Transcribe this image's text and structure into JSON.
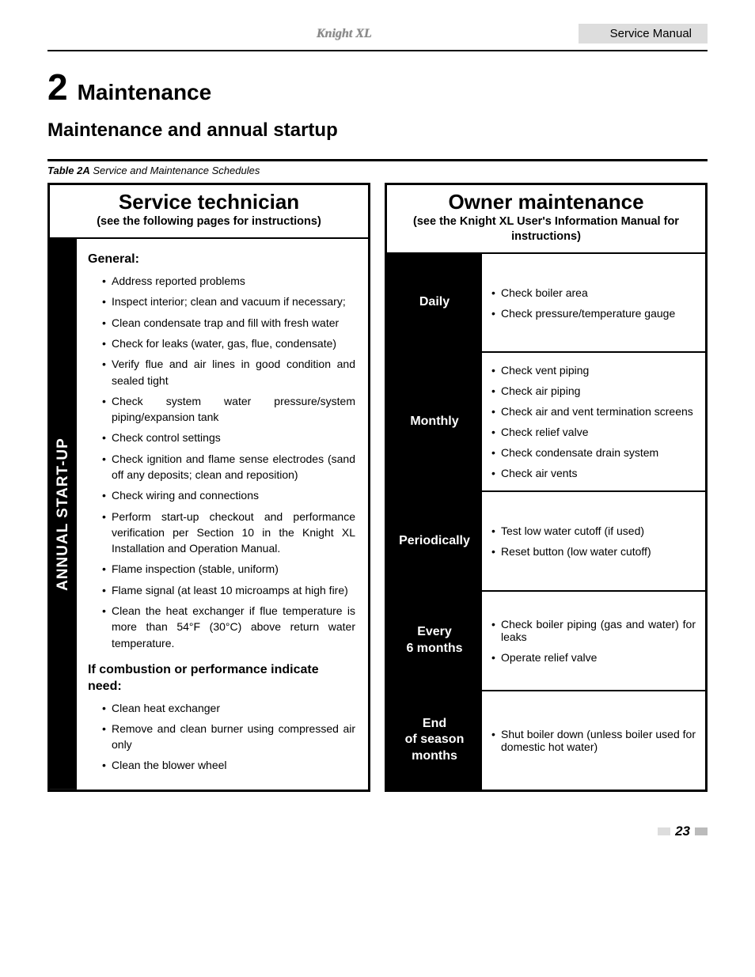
{
  "header": {
    "logo_text": "Knight XL",
    "label": "Service Manual"
  },
  "chapter": {
    "number": "2",
    "title": "Maintenance"
  },
  "subheading": "Maintenance and annual startup",
  "table_caption": {
    "bold": "Table 2A",
    "rest": " Service and Maintenance Schedules"
  },
  "left": {
    "title": "Service technician",
    "subtitle": "(see the following pages for instructions)",
    "vlabel": "ANNUAL START-UP",
    "general_heading": "General:",
    "general_items": [
      "Address reported problems",
      "Inspect interior; clean and vacuum if necessary;",
      "Clean condensate trap and fill with fresh water",
      "Check for leaks (water, gas, flue, condensate)",
      "Verify flue and air lines in good condition and sealed tight",
      "Check system water pressure/system piping/expansion tank",
      "Check control settings",
      "Check ignition and flame sense electrodes (sand off any deposits; clean and reposition)",
      "Check wiring and connections",
      "Perform start-up checkout and performance verification per Section 10 in the Knight XL Installation and Operation Manual.",
      "Flame inspection (stable, uniform)",
      "Flame signal (at least 10 microamps at high fire)",
      "Clean the heat exchanger if flue temperature is more than 54°F (30°C) above return water temperature."
    ],
    "combust_heading": "If combustion or performance indicate need:",
    "combust_items": [
      "Clean heat exchanger",
      "Remove and clean burner using compressed air only",
      "Clean the blower wheel"
    ]
  },
  "right": {
    "title": "Owner maintenance",
    "subtitle": "(see the Knight XL User's Information Manual for instructions)",
    "rows": [
      {
        "label": "Daily",
        "items": [
          "Check boiler area",
          "Check pressure/temperature gauge"
        ]
      },
      {
        "label": "Monthly",
        "items": [
          "Check vent piping",
          "Check air piping",
          "Check air and vent termination screens",
          "Check relief valve",
          "Check condensate drain system",
          "Check air vents"
        ]
      },
      {
        "label": "Periodically",
        "items": [
          "Test low water cutoff (if used)",
          "Reset button (low water cutoff)"
        ]
      },
      {
        "label": "Every\n6 months",
        "items": [
          "Check boiler piping (gas and water) for leaks",
          "Operate relief valve"
        ]
      },
      {
        "label": "End\nof season\nmonths",
        "items": [
          "Shut boiler down (unless boiler used for domestic hot water)"
        ]
      }
    ]
  },
  "page_number": "23"
}
